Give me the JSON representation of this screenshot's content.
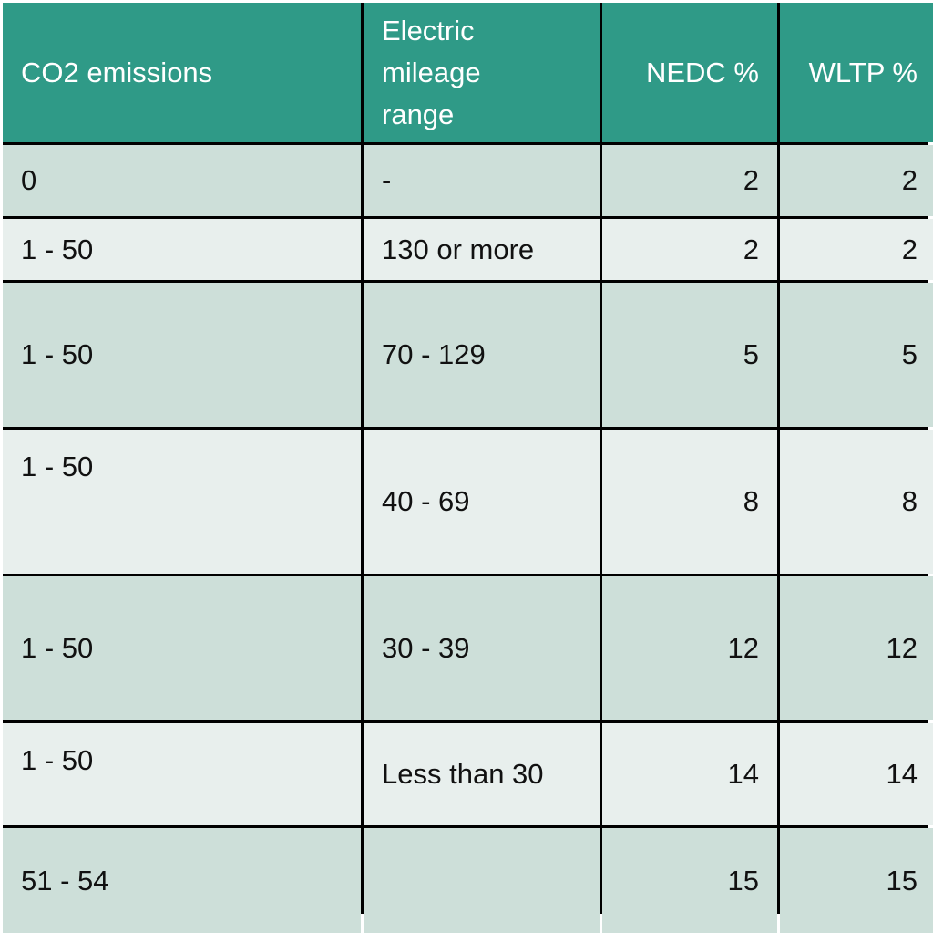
{
  "table": {
    "headers": [
      "CO2 emissions",
      "Electric\nmileage\nrange",
      "NEDC %",
      "WLTP %"
    ],
    "rows": [
      {
        "co2": "0",
        "range": "-",
        "nedc": "2",
        "wltp": "2"
      },
      {
        "co2": "1 - 50",
        "range": "130 or more",
        "nedc": "2",
        "wltp": "2"
      },
      {
        "co2": "1 - 50",
        "range": "70 - 129",
        "nedc": "5",
        "wltp": "5"
      },
      {
        "co2": "1 - 50",
        "range": "40 - 69",
        "nedc": "8",
        "wltp": "8"
      },
      {
        "co2": "1 - 50",
        "range": "30 - 39",
        "nedc": "12",
        "wltp": "12"
      },
      {
        "co2": "1 - 50",
        "range": "Less than 30",
        "nedc": "14",
        "wltp": "14"
      },
      {
        "co2": "51 - 54",
        "range": "",
        "nedc": "15",
        "wltp": "15"
      }
    ]
  },
  "colors": {
    "header_bg": "#2f9a87",
    "row_dark": "#cddfd9",
    "row_light": "#e8efed",
    "grid_lines": "#000000"
  }
}
